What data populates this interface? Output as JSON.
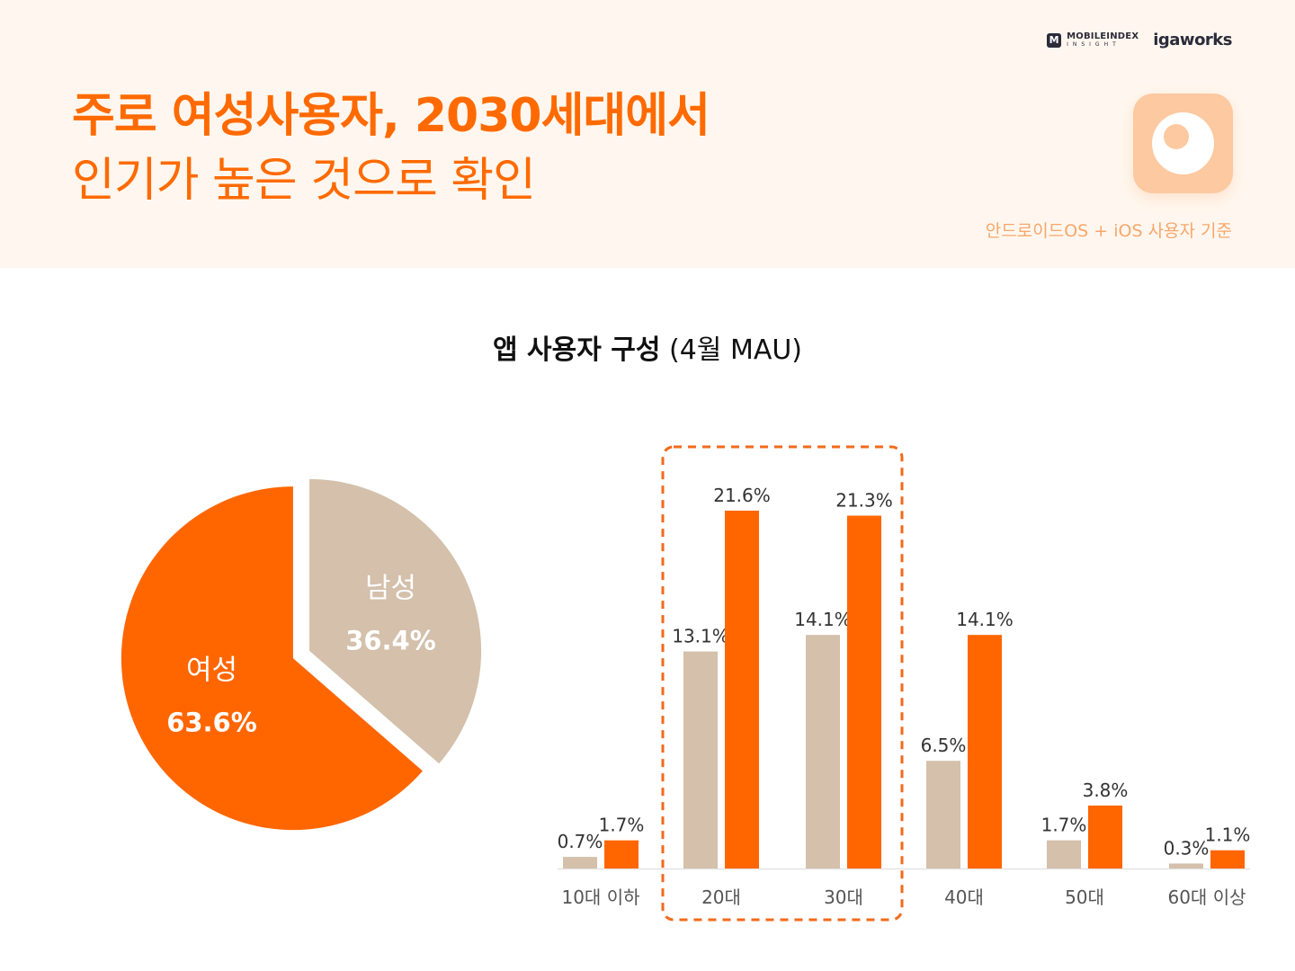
{
  "header": {
    "title_line1": "주로 여성사용자, 2030세대에서",
    "title_line2": "인기가 높은 것으로 확인",
    "note": "안드로이드OS + iOS 사용자 기준",
    "brand_mobileindex": "MOBILEINDEX",
    "brand_mobileindex_sub": "INSIGHT",
    "brand_igaworks": "igaworks"
  },
  "chart_title": {
    "bold": "앱 사용자 구성",
    "rest": "(4월 MAU)"
  },
  "colors": {
    "female": "#ff6600",
    "male": "#d4c0ab",
    "header_bg": "#fff7ef",
    "highlight": "#f26a1b"
  },
  "chart_data": [
    {
      "type": "pie",
      "slices": [
        {
          "name": "여성",
          "value": 63.6,
          "label": "63.6%",
          "color": "#ff6600"
        },
        {
          "name": "남성",
          "value": 36.4,
          "label": "36.4%",
          "color": "#d4c0ab"
        }
      ]
    },
    {
      "type": "bar",
      "categories": [
        "10대 이하",
        "20대",
        "30대",
        "40대",
        "50대",
        "60대 이상"
      ],
      "series": [
        {
          "name": "남성",
          "color": "#d4c0ab",
          "values": [
            0.7,
            13.1,
            14.1,
            6.5,
            1.7,
            0.3
          ]
        },
        {
          "name": "여성",
          "color": "#ff6600",
          "values": [
            1.7,
            21.6,
            21.3,
            14.1,
            3.8,
            1.1
          ]
        }
      ],
      "value_suffix": "%",
      "highlight_categories": [
        "20대",
        "30대"
      ],
      "ylim": [
        0,
        21.6
      ]
    }
  ]
}
